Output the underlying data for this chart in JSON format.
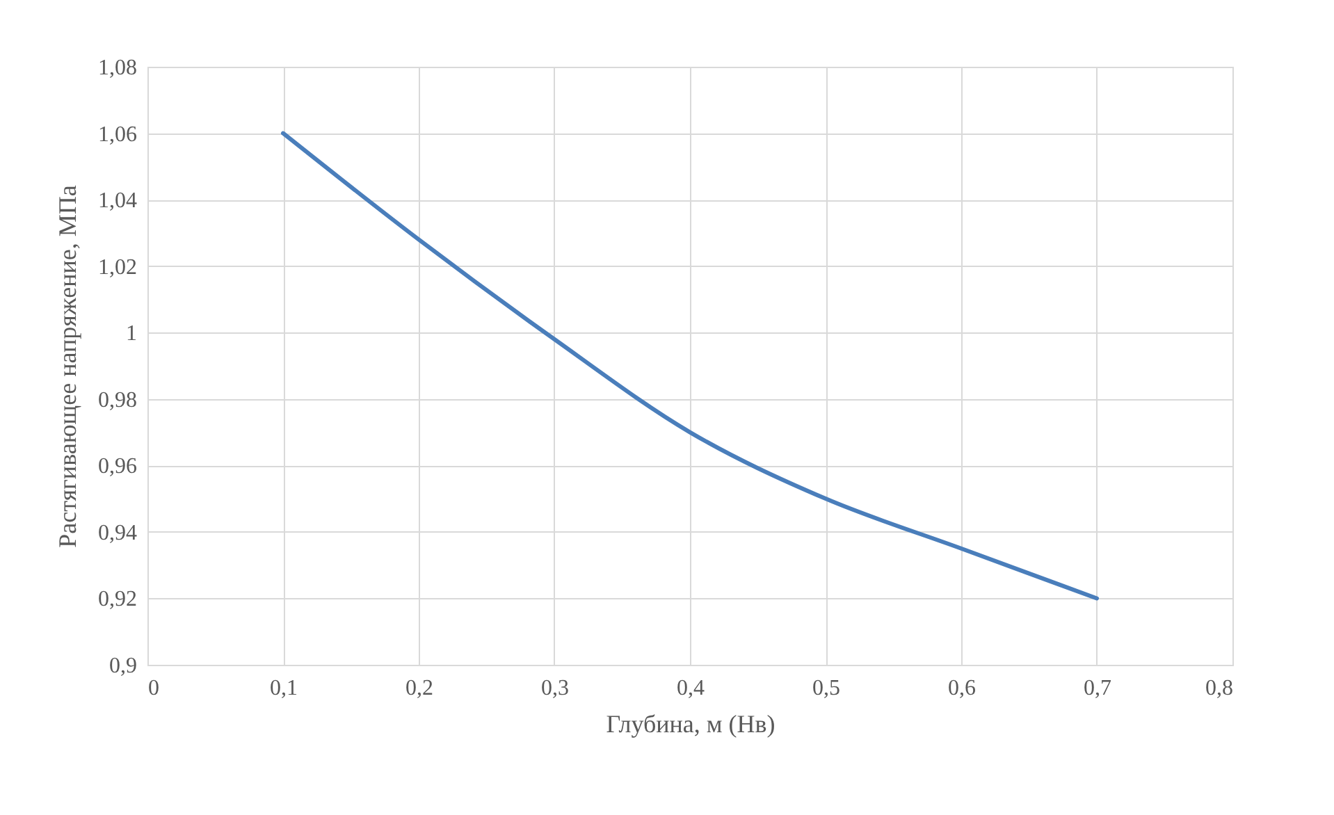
{
  "chart_data": {
    "type": "line",
    "xlabel": "Глубина, м (Нв)",
    "ylabel": "Растягивающее напряжение, МПа",
    "x": [
      0.1,
      0.2,
      0.3,
      0.4,
      0.5,
      0.6,
      0.7
    ],
    "series": [
      {
        "color": "#4a7ebb",
        "values": [
          1.06,
          1.028,
          0.998,
          0.97,
          0.95,
          0.935,
          0.92
        ]
      }
    ],
    "xlim": [
      0,
      0.8
    ],
    "xticks": [
      {
        "value": 0,
        "label": "0"
      },
      {
        "value": 0.1,
        "label": "0,1"
      },
      {
        "value": 0.2,
        "label": "0,2"
      },
      {
        "value": 0.3,
        "label": "0,3"
      },
      {
        "value": 0.4,
        "label": "0,4"
      },
      {
        "value": 0.5,
        "label": "0,5"
      },
      {
        "value": 0.6,
        "label": "0,6"
      },
      {
        "value": 0.7,
        "label": "0,7"
      },
      {
        "value": 0.8,
        "label": "0,8"
      }
    ],
    "ylim": [
      0.9,
      1.08
    ],
    "yticks": [
      {
        "value": 0.9,
        "label": "0,9"
      },
      {
        "value": 0.92,
        "label": "0,92"
      },
      {
        "value": 0.94,
        "label": "0,94"
      },
      {
        "value": 0.96,
        "label": "0,96"
      },
      {
        "value": 0.98,
        "label": "0,98"
      },
      {
        "value": 1,
        "label": "1"
      },
      {
        "value": 1.02,
        "label": "1,02"
      },
      {
        "value": 1.04,
        "label": "1,04"
      },
      {
        "value": 1.06,
        "label": "1,06"
      },
      {
        "value": 1.08,
        "label": "1,08"
      }
    ],
    "grid": true,
    "marker": "none",
    "line_style": "solid"
  }
}
